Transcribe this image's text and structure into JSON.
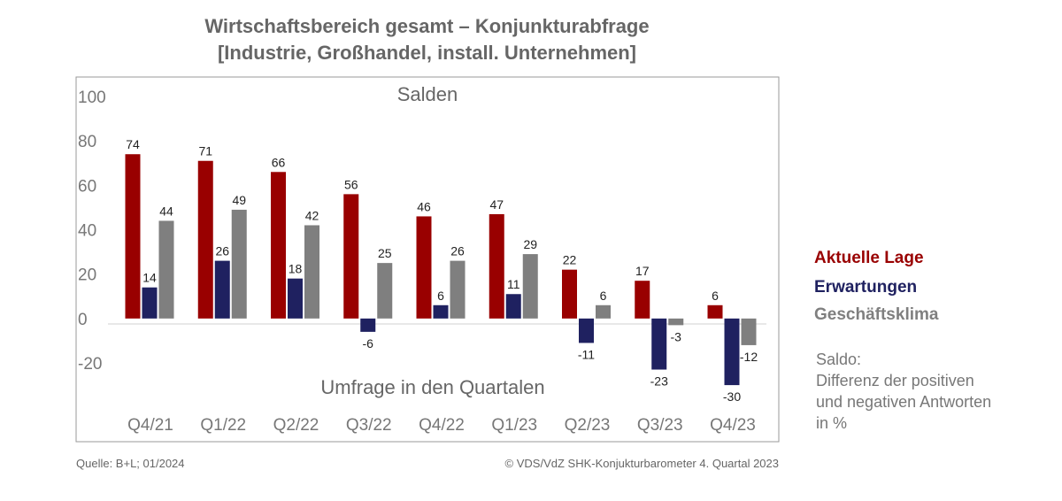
{
  "title_line1": "Wirtschaftsbereich gesamt – Konjunkturabfrage",
  "title_line2": "[Industrie, Großhandel, install. Unternehmen]",
  "chart_data": {
    "type": "bar",
    "subtitle": "Salden",
    "xlabel": "Umfrage in den Quartalen",
    "ylabel": "",
    "ylim": [
      -20,
      100
    ],
    "yticks": [
      100,
      80,
      60,
      40,
      20,
      0,
      -20
    ],
    "categories": [
      "Q4/21",
      "Q1/22",
      "Q2/22",
      "Q3/22",
      "Q4/22",
      "Q1/23",
      "Q2/23",
      "Q3/23",
      "Q4/23"
    ],
    "series": [
      {
        "name": "Aktuelle Lage",
        "color": "#990000",
        "values": [
          74,
          71,
          66,
          56,
          46,
          47,
          22,
          17,
          6
        ]
      },
      {
        "name": "Erwartungen",
        "color": "#1f2160",
        "values": [
          14,
          26,
          18,
          -6,
          6,
          11,
          -11,
          -23,
          -30
        ]
      },
      {
        "name": "Geschäftsklima",
        "color": "#7f7f7f",
        "values": [
          44,
          49,
          42,
          25,
          26,
          29,
          6,
          -3,
          -12
        ]
      }
    ],
    "grid": false,
    "legend_position": "right"
  },
  "note": {
    "line1": "Saldo:",
    "line2": "Differenz der positiven",
    "line3": "und negativen Antworten",
    "line4": "in %"
  },
  "footer": {
    "source": "Quelle: B+L; 01/2024",
    "copyright": "© VDS/VdZ SHK-Konjukturbarometer 4. Quartal 2023"
  }
}
